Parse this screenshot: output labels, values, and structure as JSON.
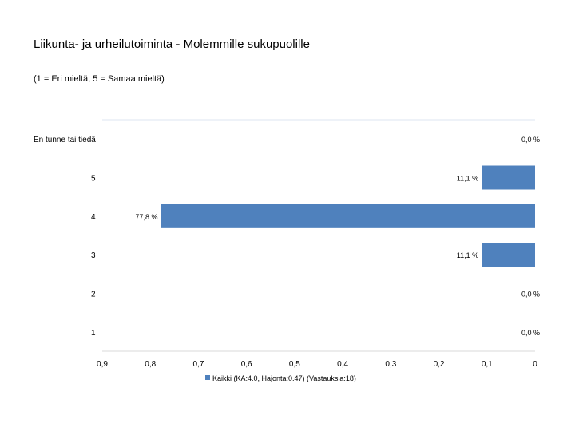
{
  "chart_data": {
    "type": "bar",
    "orientation": "horizontal",
    "title": "Liikunta- ja urheilutoiminta - Molemmille sukupuolille",
    "subtitle": "(1 = Eri mieltä, 5 = Samaa mieltä)",
    "categories": [
      "En tunne tai tiedä",
      "5",
      "4",
      "3",
      "2",
      "1"
    ],
    "series": [
      {
        "name": "Kaikki (KA:4.0, Hajonta:0.47) (Vastauksia:18)",
        "values": [
          0.0,
          0.111,
          0.778,
          0.111,
          0.0,
          0.0
        ],
        "value_labels": [
          "0,0 %",
          "11,1 %",
          "77,8 %",
          "11,1 %",
          "0,0 %",
          "0,0 %"
        ]
      }
    ],
    "x_ticks": [
      0.9,
      0.8,
      0.7,
      0.6,
      0.5,
      0.4,
      0.3,
      0.2,
      0.1,
      0
    ],
    "x_tick_labels": [
      "0,9",
      "0,8",
      "0,7",
      "0,6",
      "0,5",
      "0,4",
      "0,3",
      "0,2",
      "0,1",
      "0"
    ],
    "xlim": [
      0,
      0.9
    ],
    "x_reversed": true,
    "grid": false,
    "legend_position": "bottom",
    "colors": {
      "bar": "#4f81bd",
      "grid": "#dce6f1",
      "axis": "#d9d9d9"
    }
  }
}
